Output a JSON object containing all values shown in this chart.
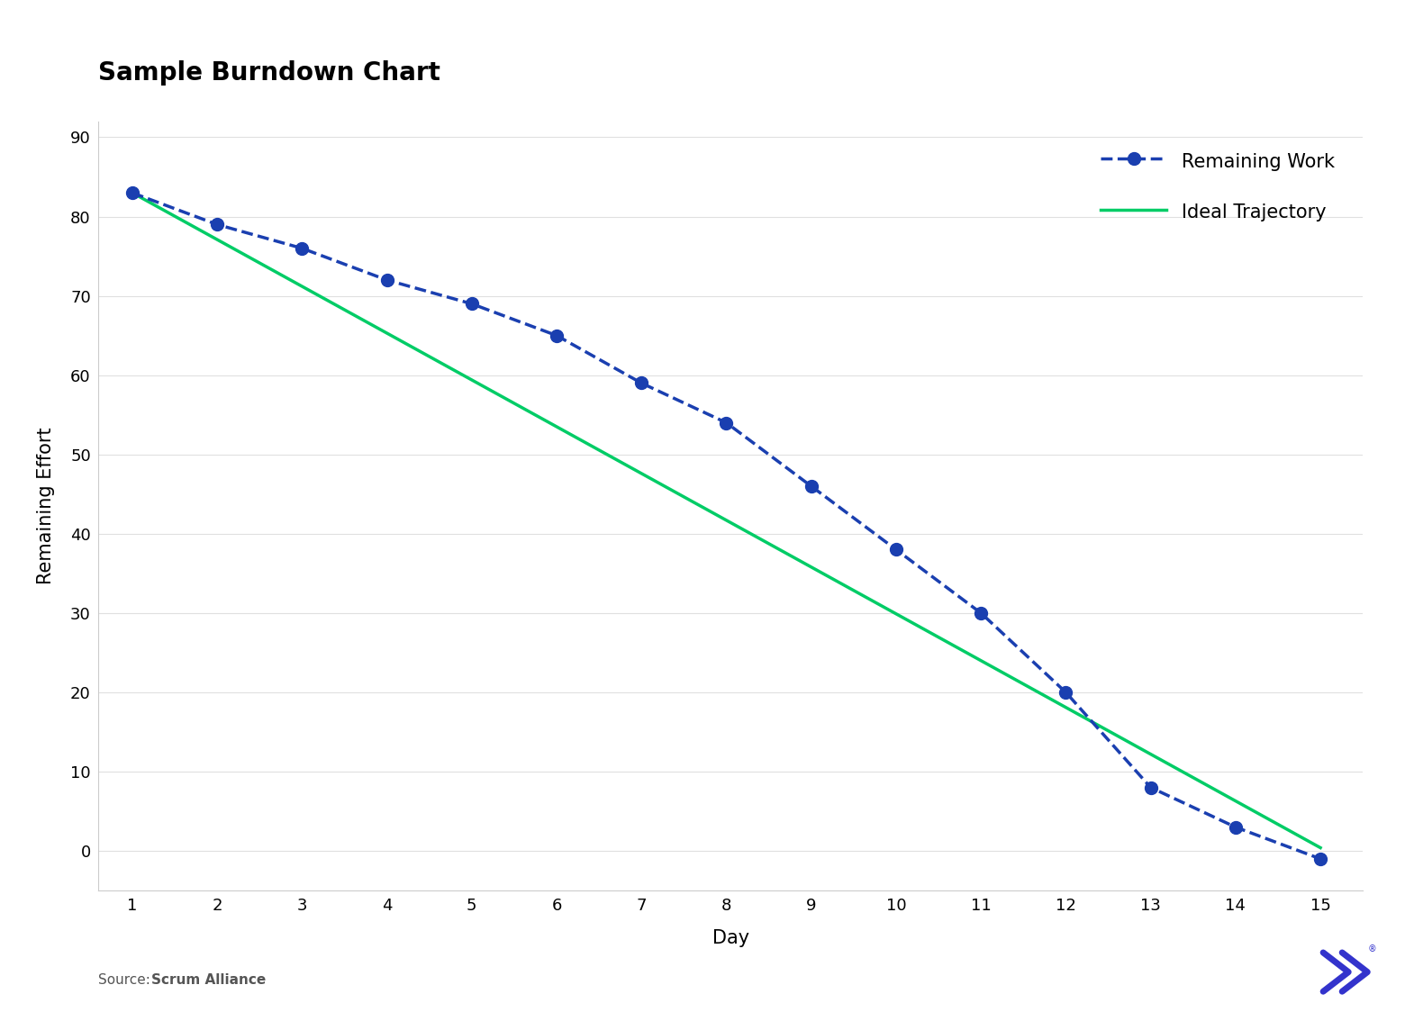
{
  "title": "Sample Burndown Chart",
  "xlabel": "Day",
  "ylabel": "Remaining Effort",
  "days": [
    1,
    2,
    3,
    4,
    5,
    6,
    7,
    8,
    9,
    10,
    11,
    12,
    13,
    14,
    15
  ],
  "remaining_work": [
    83,
    79,
    76,
    72,
    69,
    65,
    59,
    54,
    46,
    38,
    30,
    20,
    8,
    3,
    -1
  ],
  "ideal_trajectory": [
    83,
    77.1,
    71.2,
    65.3,
    59.4,
    53.5,
    47.6,
    41.7,
    35.8,
    29.9,
    24.0,
    18.1,
    12.2,
    6.3,
    0.4
  ],
  "remaining_color": "#1a3fb0",
  "ideal_color": "#00cc66",
  "background_color": "#ffffff",
  "title_fontsize": 20,
  "axis_label_fontsize": 15,
  "tick_fontsize": 13,
  "legend_fontsize": 15,
  "ylim": [
    -5,
    92
  ],
  "xlim": [
    0.6,
    15.5
  ],
  "yticks": [
    0,
    10,
    20,
    30,
    40,
    50,
    60,
    70,
    80,
    90
  ],
  "xticks": [
    1,
    2,
    3,
    4,
    5,
    6,
    7,
    8,
    9,
    10,
    11,
    12,
    13,
    14,
    15
  ],
  "source_text": "Source: ",
  "source_bold_text": "Scrum Alliance",
  "source_fontsize": 11,
  "icon_color": "#3333cc"
}
